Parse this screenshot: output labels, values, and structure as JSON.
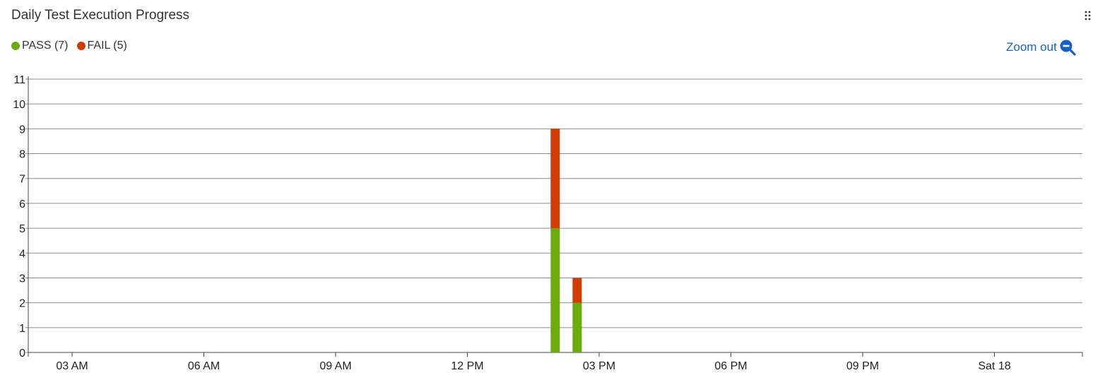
{
  "header": {
    "title": "Daily Test Execution Progress"
  },
  "legend": {
    "items": [
      {
        "label": "PASS (7)",
        "color": "#6aac10"
      },
      {
        "label": "FAIL (5)",
        "color": "#d13c06"
      }
    ]
  },
  "toolbar": {
    "zoom_out_label": "Zoom out",
    "zoom_out_icon": "zoom-out-icon",
    "accent": "#1a5fc4",
    "drag_icon": "drag-handle-icon"
  },
  "chart_data": {
    "type": "bar",
    "stacked": true,
    "x_axis": {
      "kind": "datetime",
      "range": [
        "01:42",
        "Sat 18 03:30"
      ],
      "tick_labels": [
        "03 AM",
        "06 AM",
        "09 AM",
        "12 PM",
        "03 PM",
        "06 PM",
        "09 PM",
        "Sat 18"
      ]
    },
    "y_axis": {
      "range": [
        0,
        11
      ],
      "tick_labels": [
        "0",
        "1",
        "2",
        "3",
        "4",
        "5",
        "6",
        "7",
        "8",
        "9",
        "10",
        "11"
      ]
    },
    "grid": true,
    "legend_position": "top-left",
    "x": [
      "14:00",
      "14:30"
    ],
    "series": [
      {
        "name": "PASS",
        "color": "#6aac10",
        "values": [
          5,
          2
        ]
      },
      {
        "name": "FAIL",
        "color": "#d13c06",
        "values": [
          4,
          1
        ]
      }
    ]
  }
}
